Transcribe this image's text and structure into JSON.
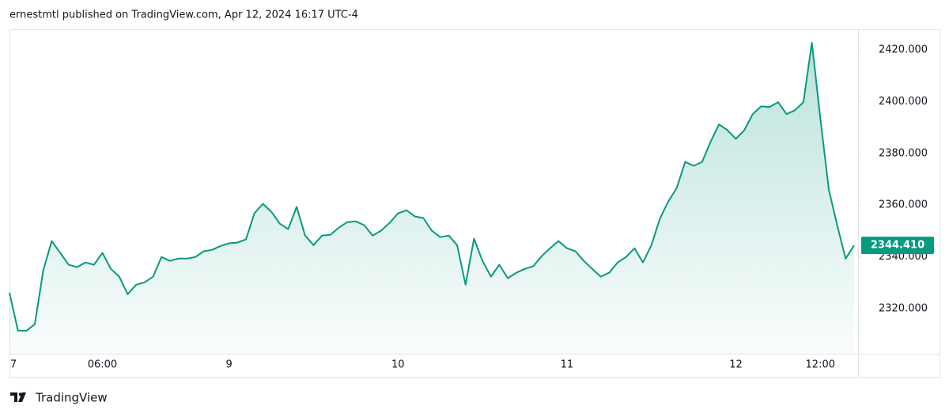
{
  "chart_data": {
    "type": "area",
    "title": "ernestmtl published on TradingView.com, Apr 12, 2024 16:17 UTC-4",
    "footer": "TradingView",
    "color": "#089981",
    "categories": [
      "7",
      null,
      null,
      null,
      null,
      null,
      null,
      null,
      null,
      null,
      null,
      "06:00",
      null,
      null,
      null,
      null,
      null,
      null,
      null,
      null,
      null,
      null,
      null,
      null,
      null,
      null,
      "9",
      null,
      null,
      null,
      null,
      null,
      null,
      null,
      null,
      null,
      null,
      null,
      null,
      null,
      null,
      null,
      null,
      null,
      null,
      null,
      "10",
      null,
      null,
      null,
      null,
      null,
      null,
      null,
      null,
      null,
      null,
      null,
      null,
      null,
      null,
      null,
      null,
      null,
      null,
      null,
      "11",
      null,
      null,
      null,
      null,
      null,
      null,
      null,
      null,
      null,
      null,
      null,
      null,
      null,
      null,
      null,
      null,
      null,
      null,
      null,
      "12",
      null,
      null,
      null,
      null,
      null,
      null,
      null,
      null,
      null,
      "12:00",
      null,
      null,
      null,
      null
    ],
    "values": [
      2326.1,
      2311.4,
      2311.4,
      2313.9,
      2334.7,
      2346.1,
      2341.5,
      2336.9,
      2336.0,
      2337.8,
      2336.9,
      2341.5,
      2335.3,
      2332.3,
      2325.5,
      2329.2,
      2330.1,
      2332.3,
      2339.9,
      2338.4,
      2339.3,
      2339.3,
      2339.9,
      2342.1,
      2342.7,
      2344.2,
      2345.2,
      2345.5,
      2346.7,
      2356.8,
      2360.5,
      2357.4,
      2352.8,
      2350.7,
      2359.3,
      2348.2,
      2344.5,
      2348.2,
      2348.5,
      2351.3,
      2353.4,
      2353.7,
      2352.2,
      2348.2,
      2350.1,
      2353.1,
      2356.8,
      2358.0,
      2355.6,
      2355.0,
      2350.1,
      2347.6,
      2348.2,
      2344.5,
      2329.2,
      2347.0,
      2338.4,
      2332.3,
      2336.9,
      2331.7,
      2333.8,
      2335.3,
      2336.3,
      2340.2,
      2343.3,
      2346.1,
      2343.3,
      2342.1,
      2338.4,
      2335.3,
      2332.3,
      2333.8,
      2337.8,
      2339.9,
      2343.3,
      2337.8,
      2344.5,
      2354.7,
      2361.4,
      2366.6,
      2376.7,
      2375.2,
      2376.7,
      2384.4,
      2391.2,
      2389.0,
      2385.6,
      2389.0,
      2395.2,
      2398.2,
      2397.9,
      2399.8,
      2395.2,
      2396.7,
      2399.8,
      2422.8,
      2393.6,
      2366.0,
      2352.2,
      2339.3,
      2344.41
    ],
    "value_labels": [
      null,
      null,
      null,
      null,
      null,
      null,
      null,
      null,
      null,
      null,
      null,
      null,
      null,
      null,
      null,
      null,
      null,
      null,
      null,
      null,
      null,
      null,
      null,
      null,
      null,
      null,
      null,
      null,
      null,
      null,
      null,
      null,
      null,
      null,
      null,
      null,
      null,
      null,
      null,
      null,
      null,
      null,
      null,
      null,
      null,
      null,
      null,
      null,
      null,
      null,
      null,
      null,
      null,
      null,
      null,
      null,
      null,
      null,
      null,
      null,
      null,
      null,
      null,
      null,
      null,
      null,
      null,
      null,
      null,
      null,
      null,
      null,
      null,
      null,
      null,
      null,
      null,
      null,
      null,
      null,
      null,
      null,
      null,
      null,
      null,
      null,
      null,
      null,
      null,
      null,
      null,
      null,
      null,
      null,
      null,
      null,
      null,
      null,
      null,
      null,
      "2344.410"
    ],
    "ylim": [
      2302.5,
      2428
    ],
    "yticks": [
      {
        "value": 2320,
        "label": "2320.000"
      },
      {
        "value": 2340,
        "label": "2340.000"
      },
      {
        "value": 2360,
        "label": "2360.000"
      },
      {
        "value": 2380,
        "label": "2380.000"
      },
      {
        "value": 2400,
        "label": "2400.000"
      },
      {
        "value": 2420,
        "label": "2420.000"
      }
    ],
    "grid": false
  }
}
